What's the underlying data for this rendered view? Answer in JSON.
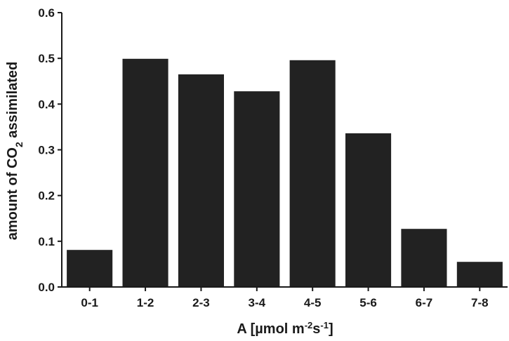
{
  "chart_data": {
    "type": "bar",
    "categories": [
      "0-1",
      "1-2",
      "2-3",
      "3-4",
      "4-5",
      "5-6",
      "6-7",
      "7-8"
    ],
    "values": [
      0.081,
      0.499,
      0.465,
      0.428,
      0.496,
      0.336,
      0.127,
      0.055
    ],
    "ylim": [
      0,
      0.6
    ],
    "yticks": [
      "0.0",
      "0.1",
      "0.2",
      "0.3",
      "0.4",
      "0.5",
      "0.6"
    ],
    "xlabel": {
      "prefix": "A [µmol m",
      "sup1": "-2",
      "mid": "s",
      "sup2": "-1",
      "suffix": "]"
    },
    "ylabel": {
      "prefix": "amount of CO",
      "sub": "2",
      "suffix": " assimilated"
    },
    "grid": false,
    "colors": {
      "bar": "#222222",
      "axis": "#1a1a1a"
    }
  }
}
